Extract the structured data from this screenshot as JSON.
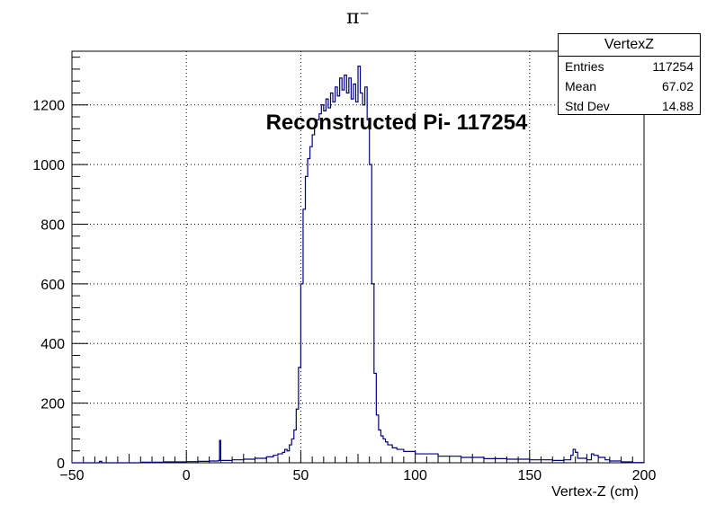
{
  "chart_data": {
    "type": "line",
    "title": "π⁻",
    "annotation": "Reconstructed Pi- 117254",
    "xlabel": "Vertex-Z (cm)",
    "ylabel": "",
    "xlim": [
      -50,
      200
    ],
    "ylim": [
      0,
      1380
    ],
    "x_ticks": [
      "−50",
      "0",
      "50",
      "100",
      "150",
      "200"
    ],
    "y_ticks": [
      "0",
      "200",
      "400",
      "600",
      "800",
      "1000",
      "1200"
    ],
    "grid": true,
    "color": "#000080",
    "series": [
      {
        "points": [
          [
            -50,
            0
          ],
          [
            -40,
            0
          ],
          [
            -38,
            5
          ],
          [
            -37,
            0
          ],
          [
            -30,
            0
          ],
          [
            -20,
            2
          ],
          [
            -10,
            3
          ],
          [
            0,
            4
          ],
          [
            5,
            5
          ],
          [
            10,
            6
          ],
          [
            14,
            8
          ],
          [
            14.5,
            75
          ],
          [
            15,
            8
          ],
          [
            20,
            10
          ],
          [
            25,
            12
          ],
          [
            30,
            15
          ],
          [
            35,
            20
          ],
          [
            38,
            25
          ],
          [
            40,
            30
          ],
          [
            42,
            35
          ],
          [
            43,
            45
          ],
          [
            44,
            40
          ],
          [
            45,
            60
          ],
          [
            46,
            80
          ],
          [
            47,
            110
          ],
          [
            48,
            180
          ],
          [
            49,
            320
          ],
          [
            50,
            600
          ],
          [
            51,
            850
          ],
          [
            52,
            960
          ],
          [
            53,
            1020
          ],
          [
            54,
            1060
          ],
          [
            55,
            1100
          ],
          [
            56,
            1130
          ],
          [
            57,
            1150
          ],
          [
            58,
            1170
          ],
          [
            59,
            1200
          ],
          [
            60,
            1180
          ],
          [
            61,
            1220
          ],
          [
            62,
            1190
          ],
          [
            63,
            1240
          ],
          [
            64,
            1210
          ],
          [
            65,
            1260
          ],
          [
            66,
            1230
          ],
          [
            67,
            1290
          ],
          [
            68,
            1250
          ],
          [
            69,
            1300
          ],
          [
            70,
            1240
          ],
          [
            71,
            1290
          ],
          [
            72,
            1220
          ],
          [
            73,
            1270
          ],
          [
            74,
            1210
          ],
          [
            75,
            1330
          ],
          [
            76,
            1240
          ],
          [
            77,
            1200
          ],
          [
            78,
            1260
          ],
          [
            79,
            1150
          ],
          [
            80,
            1000
          ],
          [
            81,
            600
          ],
          [
            82,
            300
          ],
          [
            83,
            160
          ],
          [
            84,
            110
          ],
          [
            85,
            90
          ],
          [
            86,
            80
          ],
          [
            87,
            70
          ],
          [
            88,
            60
          ],
          [
            90,
            50
          ],
          [
            92,
            45
          ],
          [
            95,
            38
          ],
          [
            100,
            30
          ],
          [
            110,
            22
          ],
          [
            120,
            18
          ],
          [
            130,
            14
          ],
          [
            140,
            12
          ],
          [
            150,
            10
          ],
          [
            160,
            8
          ],
          [
            165,
            10
          ],
          [
            168,
            25
          ],
          [
            169,
            45
          ],
          [
            170,
            35
          ],
          [
            171,
            15
          ],
          [
            175,
            10
          ],
          [
            177,
            30
          ],
          [
            178,
            25
          ],
          [
            180,
            18
          ],
          [
            183,
            10
          ],
          [
            185,
            6
          ],
          [
            190,
            3
          ],
          [
            195,
            1
          ],
          [
            200,
            0
          ]
        ]
      }
    ]
  },
  "stats": {
    "title": "VertexZ",
    "rows": [
      {
        "label": "Entries",
        "value": "117254"
      },
      {
        "label": "Mean",
        "value": "67.02"
      },
      {
        "label": "Std Dev",
        "value": "14.88"
      }
    ]
  }
}
